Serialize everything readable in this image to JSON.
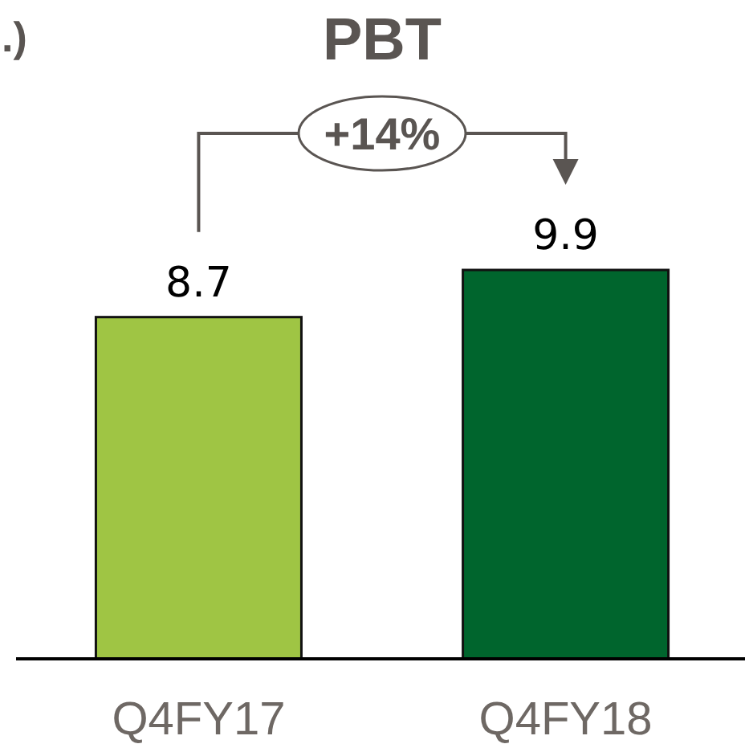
{
  "chart_data": {
    "type": "bar",
    "title": "PBT",
    "categories": [
      "Q4FY17",
      "Q4FY18"
    ],
    "values": [
      8.7,
      9.9
    ],
    "colors": [
      "#9fc544",
      "#00652d"
    ],
    "data_labels": true,
    "annotations": [
      "+14%",
      ".)"
    ]
  }
}
